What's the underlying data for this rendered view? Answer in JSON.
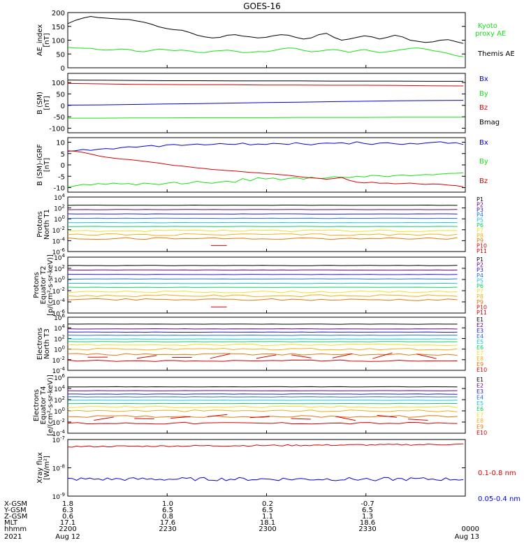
{
  "title": "GOES-16",
  "colors": {
    "black": "#000000",
    "green": "#18e018",
    "blue": "#0000dd",
    "red": "#dd0000",
    "p_colors": [
      "#000000",
      "#6a0080",
      "#1c1ccc",
      "#1f6fdf",
      "#19c4d8",
      "#12cc66",
      "#f2e02a",
      "#f0b01a",
      "#e07a10",
      "#d80000",
      "#cc0000"
    ],
    "e_colors": [
      "#000000",
      "#6a0080",
      "#1c1ccc",
      "#1f6fdf",
      "#19c4d8",
      "#12cc66",
      "#f2e02a",
      "#f0b01a",
      "#e07a10",
      "#d80000"
    ]
  },
  "chart_data": [
    {
      "type": "line",
      "ylabel": "AE_index [nT]",
      "ylim": [
        0,
        200
      ],
      "yticks": [
        "0",
        "50",
        "100",
        "150",
        "200"
      ],
      "series": [
        {
          "name": "Kyoto proxy AE",
          "color": "green",
          "values": [
            74,
            72,
            71,
            70,
            66,
            64,
            65,
            68,
            66,
            60,
            58,
            63,
            68,
            65,
            62,
            64,
            61,
            56,
            55,
            60,
            62,
            64,
            60,
            55,
            56,
            59,
            58,
            62,
            68,
            72,
            70,
            63,
            58,
            60,
            64,
            66,
            62,
            56,
            62,
            66,
            60,
            55,
            58,
            62,
            66,
            70,
            72,
            68,
            62,
            58,
            52,
            44,
            40
          ]
        },
        {
          "name": "Themis AE",
          "color": "black",
          "values": [
            160,
            172,
            180,
            186,
            182,
            180,
            178,
            176,
            175,
            170,
            165,
            158,
            148,
            142,
            138,
            136,
            128,
            118,
            112,
            108,
            110,
            118,
            120,
            115,
            112,
            108,
            110,
            116,
            120,
            118,
            110,
            104,
            108,
            120,
            125,
            110,
            100,
            104,
            110,
            116,
            112,
            104,
            110,
            118,
            112,
            100,
            96,
            92,
            94,
            100,
            102,
            95,
            88
          ]
        }
      ]
    },
    {
      "type": "line",
      "ylabel": "B (SM) [nT]",
      "ylim": [
        -120,
        140
      ],
      "yticks": [
        "-100",
        "-50",
        "0",
        "50",
        "100"
      ],
      "series": [
        {
          "name": "Bx",
          "color": "blue",
          "values": [
            1,
            2,
            4,
            6,
            8,
            10,
            12,
            14,
            16,
            18,
            20,
            21,
            22
          ]
        },
        {
          "name": "By",
          "color": "green",
          "values": [
            -56,
            -56,
            -55,
            -55,
            -54,
            -54,
            -54,
            -53,
            -53,
            -53,
            -52,
            -52,
            -52
          ]
        },
        {
          "name": "Bz",
          "color": "red",
          "values": [
            96,
            94,
            92,
            91,
            90,
            90,
            89,
            89,
            88,
            88,
            87,
            86,
            85
          ]
        },
        {
          "name": "Bmag",
          "color": "black",
          "values": [
            111,
            110,
            109,
            108,
            108,
            107,
            107,
            107,
            106,
            106,
            106,
            105,
            105
          ]
        }
      ]
    },
    {
      "type": "line",
      "ylabel": "B (SM)-IGRF [nT]",
      "ylim": [
        -12,
        12
      ],
      "yticks": [
        "-10",
        "-5",
        "0",
        "5",
        "10"
      ],
      "series": [
        {
          "name": "Bx",
          "color": "blue",
          "values": [
            6.0,
            6.2,
            6.8,
            6.4,
            6.9,
            7.2,
            7.0,
            7.6,
            8.0,
            7.8,
            8.2,
            8.6,
            8.0,
            8.8,
            9.0,
            8.6,
            8.9,
            9.2,
            8.8,
            9.0,
            9.4,
            9.1,
            9.0,
            9.6,
            8.8,
            9.2,
            9.0,
            9.5,
            9.3,
            9.0,
            9.8,
            9.2,
            8.8,
            9.4,
            9.6,
            9.5,
            9.8,
            9.2,
            10.2,
            9.4,
            9.0,
            9.6,
            9.8,
            9.3,
            9.0,
            9.5,
            9.2,
            9.6,
            9.9,
            10.2,
            9.5,
            9.8,
            9.0
          ]
        },
        {
          "name": "By",
          "color": "green",
          "values": [
            -9.8,
            -9.2,
            -8.6,
            -8.8,
            -8.2,
            -8.6,
            -8.0,
            -8.4,
            -8.2,
            -8.8,
            -8.0,
            -8.3,
            -8.7,
            -8.1,
            -7.6,
            -8.4,
            -8.0,
            -7.2,
            -7.8,
            -8.1,
            -7.5,
            -7.2,
            -7.7,
            -6.0,
            -7.0,
            -5.6,
            -6.2,
            -5.8,
            -6.6,
            -6.0,
            -5.6,
            -6.3,
            -5.4,
            -6.0,
            -5.8,
            -5.2,
            -5.4,
            -5.6,
            -5.0,
            -5.3,
            -4.6,
            -4.8,
            -5.2,
            -4.7,
            -4.4,
            -4.8,
            -4.5,
            -4.2,
            -4.4,
            -4.0,
            -3.8,
            -3.7,
            -3.5
          ]
        },
        {
          "name": "Bz",
          "color": "red",
          "values": [
            6.2,
            6.0,
            5.5,
            4.8,
            4.0,
            3.4,
            3.0,
            2.6,
            2.4,
            2.0,
            1.6,
            1.2,
            0.8,
            0.2,
            -0.2,
            -0.5,
            -0.9,
            -1.3,
            -1.6,
            -2.0,
            -2.2,
            -2.5,
            -2.7,
            -3.0,
            -3.3,
            -3.5,
            -3.8,
            -4.0,
            -4.3,
            -4.6,
            -5.0,
            -5.4,
            -5.7,
            -5.9,
            -6.3,
            -6.0,
            -5.5,
            -6.8,
            -7.6,
            -7.9,
            -7.6,
            -8.1,
            -8.0,
            -8.3,
            -8.2,
            -8.0,
            -8.3,
            -8.6,
            -8.4,
            -8.5,
            -8.9,
            -9.1,
            -9.6
          ]
        }
      ]
    },
    {
      "type": "line",
      "log": true,
      "ylabel": "Protons North T1",
      "ylim_exp": [
        -6,
        4
      ],
      "yticks": [
        {
          "b": "10",
          "e": "4"
        },
        {
          "b": "10",
          "e": "2"
        },
        {
          "b": "10",
          "e": "0"
        },
        {
          "b": "10",
          "e": "-2"
        },
        {
          "b": "10",
          "e": "-4"
        },
        {
          "b": "10",
          "e": "-6"
        }
      ],
      "channels": [
        "P1",
        "P2",
        "P3",
        "P4",
        "P5",
        "P6",
        "P7",
        "P8",
        "P9",
        "P10",
        "P11"
      ],
      "levels": [
        2.5,
        1.7,
        0.9,
        0.1,
        -0.7,
        -1.4,
        -2.2,
        -2.9,
        -3.6,
        -4.9
      ],
      "segment": {
        "x": [
          0.36,
          0.4
        ],
        "y": -4.9
      }
    },
    {
      "type": "line",
      "log": true,
      "ylabel": "Protons Equator T2 [p/(cm²-s-sr-keV)]",
      "ylim_exp": [
        -6,
        4
      ],
      "yticks": [
        {
          "b": "10",
          "e": "4"
        },
        {
          "b": "10",
          "e": "2"
        },
        {
          "b": "10",
          "e": "0"
        },
        {
          "b": "10",
          "e": "-2"
        },
        {
          "b": "10",
          "e": "-4"
        },
        {
          "b": "10",
          "e": "-6"
        }
      ],
      "channels": [
        "P1",
        "P2",
        "P3",
        "P4",
        "P5",
        "P6",
        "P7",
        "P8",
        "P9",
        "P10",
        "P11"
      ],
      "levels": [
        2.5,
        1.7,
        0.9,
        0.1,
        -0.7,
        -1.4,
        -2.2,
        -2.9,
        -3.6,
        -4.9
      ],
      "segment": {
        "x": [
          0.36,
          0.4
        ],
        "y": -4.9
      }
    },
    {
      "type": "line",
      "log": true,
      "ylabel": "Electrons North T3",
      "ylim_exp": [
        -4,
        6
      ],
      "yticks": [
        {
          "b": "10",
          "e": "6"
        },
        {
          "b": "10",
          "e": "4"
        },
        {
          "b": "10",
          "e": "2"
        },
        {
          "b": "10",
          "e": "0"
        },
        {
          "b": "10",
          "e": "-2"
        },
        {
          "b": "10",
          "e": "-4"
        }
      ],
      "channels": [
        "E1",
        "E2",
        "E3",
        "E4",
        "E5",
        "E6",
        "E7",
        "E8",
        "E9",
        "E10"
      ],
      "levels": [
        4.7,
        3.8,
        3.2,
        2.6,
        1.9,
        1.4,
        0.8,
        0.0,
        -1.0,
        -2.2
      ]
    },
    {
      "type": "line",
      "log": true,
      "ylabel": "Electrons Equator T4 [e/(cm²-s-sr-keV)]",
      "ylim_exp": [
        -4,
        6
      ],
      "yticks": [
        {
          "b": "10",
          "e": "6"
        },
        {
          "b": "10",
          "e": "4"
        },
        {
          "b": "10",
          "e": "2"
        },
        {
          "b": "10",
          "e": "0"
        },
        {
          "b": "10",
          "e": "-2"
        },
        {
          "b": "10",
          "e": "-4"
        }
      ],
      "channels": [
        "E1",
        "E2",
        "E3",
        "E4",
        "E5",
        "E6",
        "E7",
        "E8",
        "E9",
        "E10"
      ],
      "levels": [
        4.3,
        3.6,
        3.0,
        2.5,
        1.9,
        1.3,
        0.7,
        0.0,
        -1.0,
        -2.2
      ]
    },
    {
      "type": "line",
      "log": true,
      "ylabel": "Xray flux [W/m²]",
      "ylim_exp": [
        -9,
        -7
      ],
      "yticks": [
        {
          "b": "10",
          "e": "-7"
        },
        {
          "b": "10",
          "e": "-8"
        },
        {
          "b": "10",
          "e": "-9"
        }
      ],
      "series": [
        {
          "name": "0.1-0.8 nm",
          "color": "red",
          "level": -7.25
        },
        {
          "name": "0.05-0.4 nm",
          "color": "blue",
          "level": -8.4
        }
      ]
    }
  ],
  "footer": {
    "row_labels": [
      "X-GSM",
      "Y-GSM",
      "Z-GSM",
      "MLT",
      "hhmm",
      "2021"
    ],
    "columns": [
      {
        "xgsm": "1.8",
        "ygsm": "6.3",
        "zgsm": "0.6",
        "mlt": "17.1",
        "hhmm": "2200",
        "date": "Aug 12"
      },
      {
        "xgsm": "1.0",
        "ygsm": "6.5",
        "zgsm": "0.8",
        "mlt": "17.6",
        "hhmm": "2230",
        "date": ""
      },
      {
        "xgsm": "0.2",
        "ygsm": "6.5",
        "zgsm": "1.1",
        "mlt": "18.1",
        "hhmm": "2300",
        "date": ""
      },
      {
        "xgsm": "-0.7",
        "ygsm": "6.5",
        "zgsm": "1.3",
        "mlt": "18.6",
        "hhmm": "2330",
        "date": ""
      },
      {
        "xgsm": "",
        "ygsm": "",
        "zgsm": "",
        "mlt": "",
        "hhmm": "0000",
        "date": "Aug 13"
      }
    ]
  }
}
